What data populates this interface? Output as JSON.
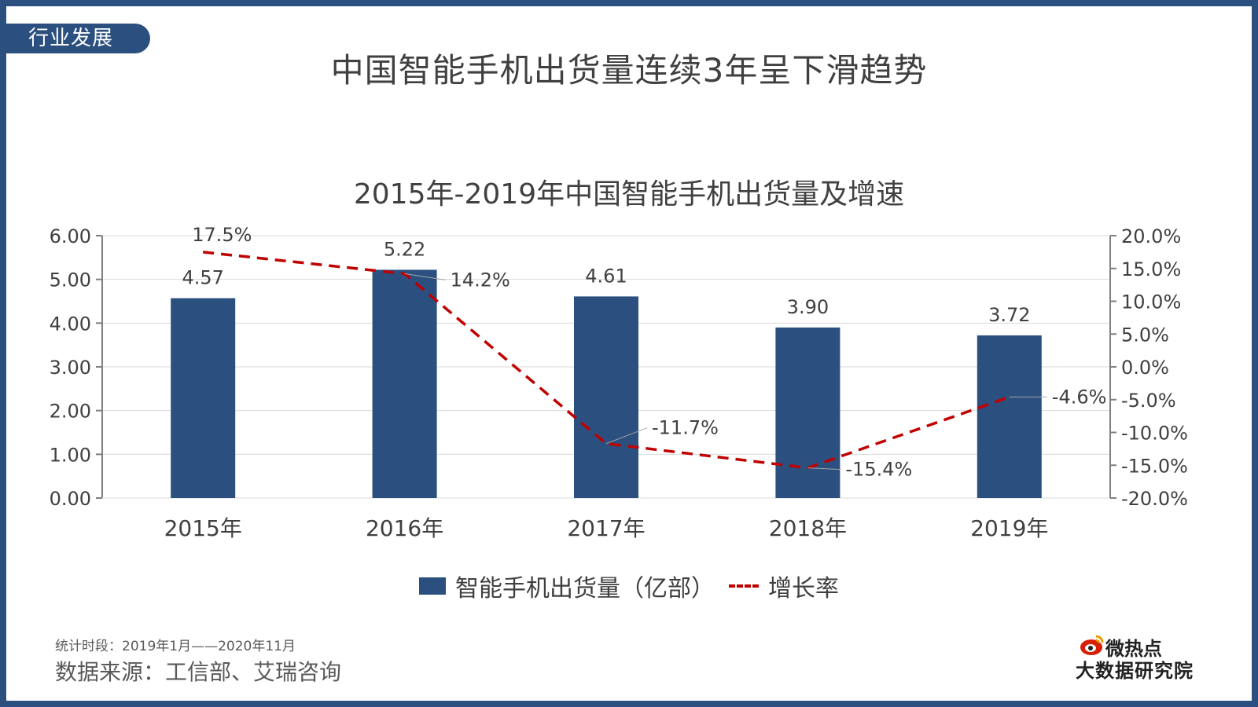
{
  "header": {
    "section_tag": "行业发展",
    "page_title": "中国智能手机出货量连续3年呈下滑趋势"
  },
  "chart_data": {
    "type": "bar",
    "title": "2015年-2019年中国智能手机出货量及增速",
    "categories": [
      "2015年",
      "2016年",
      "2017年",
      "2018年",
      "2019年"
    ],
    "series": [
      {
        "name": "智能手机出货量（亿部）",
        "type": "bar",
        "axis": "left",
        "color": "#2b4f7e",
        "values": [
          4.57,
          5.22,
          4.61,
          3.9,
          3.72
        ],
        "labels": [
          "4.57",
          "5.22",
          "4.61",
          "3.90",
          "3.72"
        ]
      },
      {
        "name": "增长率",
        "type": "line",
        "style": "dashed",
        "axis": "right",
        "color": "#c00000",
        "values": [
          17.5,
          14.2,
          -11.7,
          -15.4,
          -4.6
        ],
        "labels": [
          "17.5%",
          "14.2%",
          "-11.7%",
          "-15.4%",
          "-4.6%"
        ]
      }
    ],
    "y_left": {
      "ylim": [
        0,
        6
      ],
      "ticks": [
        0,
        1,
        2,
        3,
        4,
        5,
        6
      ],
      "tick_labels": [
        "0.00",
        "1.00",
        "2.00",
        "3.00",
        "4.00",
        "5.00",
        "6.00"
      ]
    },
    "y_right": {
      "ylim": [
        -20,
        20
      ],
      "ticks": [
        -20,
        -15,
        -10,
        -5,
        0,
        5,
        10,
        15,
        20
      ],
      "tick_labels": [
        "-20.0%",
        "-15.0%",
        "-10.0%",
        "-5.0%",
        "0.0%",
        "5.0%",
        "10.0%",
        "15.0%",
        "20.0%"
      ]
    },
    "grid": true,
    "legend": "bottom"
  },
  "footer": {
    "period": "统计时段：2019年1月——2020年11月",
    "source": "数据来源：工信部、艾瑞咨询"
  },
  "brand": {
    "top": "微热点",
    "bottom": "大数据研究院"
  }
}
